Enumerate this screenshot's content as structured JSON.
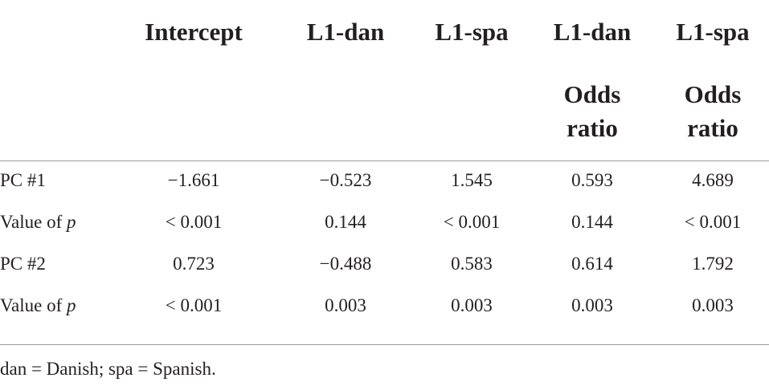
{
  "table": {
    "columns": [
      {
        "label": "Intercept"
      },
      {
        "label": "L1-dan"
      },
      {
        "label": "L1-spa"
      },
      {
        "label": "L1-dan",
        "sublabel": "Odds ratio"
      },
      {
        "label": "L1-spa",
        "sublabel": "Odds ratio"
      }
    ],
    "rows": [
      {
        "label": "PC #1",
        "cells": [
          "−1.661",
          "−0.523",
          "1.545",
          "0.593",
          "4.689"
        ]
      },
      {
        "label": "Value of",
        "label_italic": "p",
        "cells": [
          "< 0.001",
          "0.144",
          "< 0.001",
          "0.144",
          "< 0.001"
        ]
      },
      {
        "label": "PC #2",
        "cells": [
          "0.723",
          "−0.488",
          "0.583",
          "0.614",
          "1.792"
        ]
      },
      {
        "label": "Value of",
        "label_italic": "p",
        "cells": [
          "< 0.001",
          "0.003",
          "0.003",
          "0.003",
          "0.003"
        ]
      }
    ],
    "footnote": "dan = Danish; spa = Spanish."
  }
}
